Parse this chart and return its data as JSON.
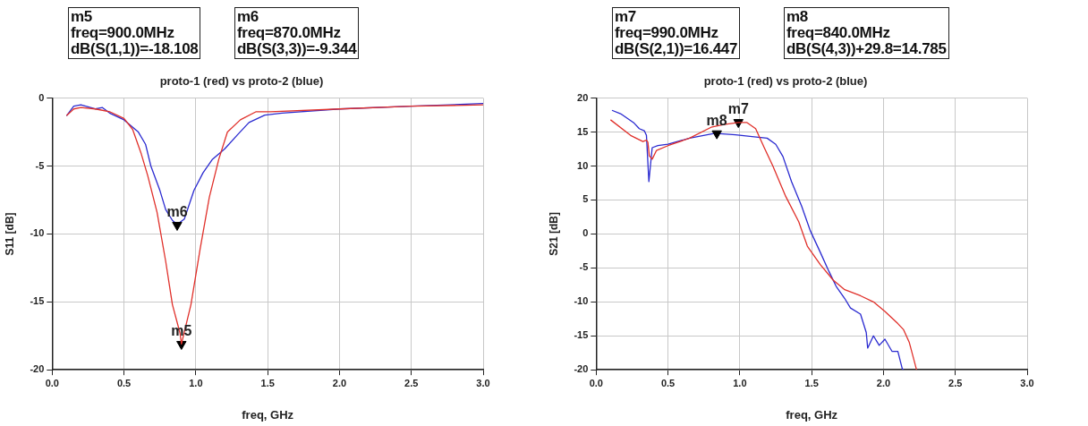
{
  "chart_data": [
    {
      "type": "line",
      "title": "proto-1 (red) vs proto-2 (blue)",
      "xlabel": "freq, GHz",
      "ylabel": "S11 [dB]",
      "xlim": [
        0,
        3
      ],
      "xticks": [
        {
          "value": 0,
          "label": "0.0"
        },
        {
          "value": 0.5,
          "label": "0.5"
        },
        {
          "value": 1,
          "label": "1.0"
        },
        {
          "value": 1.5,
          "label": "1.5"
        },
        {
          "value": 2,
          "label": "2.0"
        },
        {
          "value": 2.5,
          "label": "2.5"
        },
        {
          "value": 3,
          "label": "3.0"
        }
      ],
      "ylim": [
        -20,
        0
      ],
      "yticks": [
        -20,
        -15,
        -10,
        -5,
        0
      ],
      "grid": true,
      "legend": false,
      "marker": "none",
      "line_style": "solid",
      "annotations": [
        "m5\nfreq=900.0MHz\ndB(S(1,1))=-18.108",
        "m6\nfreq=870.0MHz\ndB(S(3,3))=-9.344",
        {
          "text": "m5",
          "x": 0.9,
          "y": -18.108
        },
        {
          "text": "m6",
          "x": 0.87,
          "y": -9.344
        }
      ],
      "series": [
        {
          "color": "#e0302a",
          "x": [
            0.1,
            0.15,
            0.2,
            0.3,
            0.35,
            0.4,
            0.5,
            0.56,
            0.62,
            0.665,
            0.73,
            0.79,
            0.837,
            0.89,
            0.9,
            0.966,
            1.03,
            1.094,
            1.16,
            1.22,
            1.31,
            1.42,
            1.52,
            2.0,
            2.5,
            3.0
          ],
          "values": [
            -1.3,
            -0.8,
            -0.7,
            -0.8,
            -0.9,
            -1.0,
            -1.5,
            -2.3,
            -4.1,
            -5.7,
            -8.4,
            -12,
            -15.2,
            -17.3,
            -18.1,
            -15.2,
            -11.1,
            -7.3,
            -4.5,
            -2.5,
            -1.6,
            -1.0,
            -1.0,
            -0.8,
            -0.6,
            -0.5
          ]
        },
        {
          "type": "scatter",
          "color": "#000000",
          "marker": "triangle",
          "x": [
            0.9,
            0.87
          ],
          "values": [
            -18.108,
            -9.344
          ]
        },
        {
          "color": "#2a2ad0",
          "x": [
            0.1,
            0.15,
            0.2,
            0.3,
            0.35,
            0.4,
            0.5,
            0.6,
            0.65,
            0.687,
            0.75,
            0.79,
            0.837,
            0.87,
            0.92,
            0.987,
            1.05,
            1.116,
            1.2,
            1.29,
            1.37,
            1.48,
            1.6,
            2.0,
            2.5,
            3.0
          ],
          "values": [
            -1.3,
            -0.6,
            -0.5,
            -0.8,
            -0.7,
            -1.1,
            -1.6,
            -2.5,
            -3.4,
            -5.0,
            -6.8,
            -8.2,
            -9.0,
            -9.3,
            -8.9,
            -6.8,
            -5.5,
            -4.5,
            -3.75,
            -2.7,
            -1.8,
            -1.25,
            -1.1,
            -0.8,
            -0.6,
            -0.4
          ]
        }
      ]
    },
    {
      "type": "line",
      "title": "proto-1 (red) vs proto-2 (blue)",
      "xlabel": "freq, GHz",
      "ylabel": "S21 [dB]",
      "xlim": [
        0,
        3
      ],
      "xticks": [
        {
          "value": 0,
          "label": "0.0"
        },
        {
          "value": 0.5,
          "label": "0.5"
        },
        {
          "value": 1,
          "label": "1.0"
        },
        {
          "value": 1.5,
          "label": "1.5"
        },
        {
          "value": 2,
          "label": "2.0"
        },
        {
          "value": 2.5,
          "label": "2.5"
        },
        {
          "value": 3,
          "label": "3.0"
        }
      ],
      "ylim": [
        -20,
        20
      ],
      "yticks": [
        -20,
        -15,
        -10,
        -5,
        0,
        5,
        10,
        15,
        20
      ],
      "grid": true,
      "legend": false,
      "marker": "none",
      "line_style": "solid",
      "annotations": [
        "m7\nfreq=990.0MHz\ndB(S(2,1))=16.447",
        "m8\nfreq=840.0MHz\ndB(S(4,3))+29.8=14.785",
        {
          "text": "m7",
          "x": 0.99,
          "y": 16.447
        },
        {
          "text": "m8",
          "x": 0.84,
          "y": 14.785
        }
      ],
      "series": [
        {
          "color": "#e0302a",
          "x": [
            0.1,
            0.24,
            0.325,
            0.35,
            0.36,
            0.37,
            0.39,
            0.42,
            0.5,
            0.65,
            0.8,
            0.89,
            0.99,
            1.05,
            1.11,
            1.17,
            1.23,
            1.32,
            1.41,
            1.47,
            1.56,
            1.65,
            1.73,
            1.84,
            1.93,
            2.01,
            2.1,
            2.14,
            2.18,
            2.23
          ],
          "values": [
            16.8,
            14.5,
            13.6,
            13.8,
            13.5,
            11.5,
            11.0,
            12.3,
            13.0,
            14.1,
            15.7,
            16.1,
            16.4,
            16.4,
            15.5,
            12.7,
            10.0,
            5.5,
            1.8,
            -1.8,
            -4.5,
            -6.8,
            -8.2,
            -9.1,
            -10,
            -11.4,
            -13.2,
            -14.1,
            -16,
            -20
          ]
        },
        {
          "type": "scatter",
          "color": "#000000",
          "marker": "triangle",
          "x": [
            0.99,
            0.84
          ],
          "values": [
            16.447,
            14.785
          ]
        },
        {
          "color": "#2a2ad0",
          "x": [
            0.11,
            0.17,
            0.26,
            0.3,
            0.335,
            0.35,
            0.367,
            0.39,
            0.43,
            0.5,
            0.65,
            0.82,
            0.84,
            0.97,
            1.1,
            1.19,
            1.25,
            1.3,
            1.36,
            1.43,
            1.49,
            1.56,
            1.62,
            1.67,
            1.73,
            1.77,
            1.84,
            1.88,
            1.89,
            1.93,
            1.97,
            2.01,
            2.06,
            2.1,
            2.13,
            2.14
          ],
          "values": [
            18.2,
            17.7,
            16.4,
            15.5,
            15.2,
            14.5,
            7.7,
            12.7,
            13.0,
            13.2,
            14.1,
            14.8,
            14.8,
            14.6,
            14.3,
            14.1,
            13.2,
            11.4,
            7.7,
            4.1,
            0.5,
            -2.7,
            -5.5,
            -7.7,
            -9.5,
            -10.9,
            -11.8,
            -14.5,
            -16.8,
            -15,
            -16.4,
            -15.5,
            -17.3,
            -17.3,
            -19.8,
            -20
          ]
        }
      ]
    }
  ]
}
